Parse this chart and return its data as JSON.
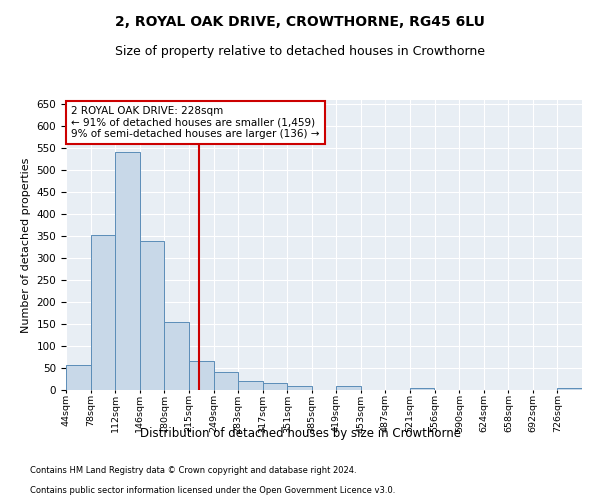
{
  "title": "2, ROYAL OAK DRIVE, CROWTHORNE, RG45 6LU",
  "subtitle": "Size of property relative to detached houses in Crowthorne",
  "xlabel": "Distribution of detached houses by size in Crowthorne",
  "ylabel": "Number of detached properties",
  "footer1": "Contains HM Land Registry data © Crown copyright and database right 2024.",
  "footer2": "Contains public sector information licensed under the Open Government Licence v3.0.",
  "annotation_line1": "2 ROYAL OAK DRIVE: 228sqm",
  "annotation_line2": "← 91% of detached houses are smaller (1,459)",
  "annotation_line3": "9% of semi-detached houses are larger (136) →",
  "bar_color": "#c8d8e8",
  "bar_edge_color": "#5b8db8",
  "ref_line_x": 228,
  "ref_line_color": "#cc0000",
  "categories": [
    "44sqm",
    "78sqm",
    "112sqm",
    "146sqm",
    "180sqm",
    "215sqm",
    "249sqm",
    "283sqm",
    "317sqm",
    "351sqm",
    "385sqm",
    "419sqm",
    "453sqm",
    "487sqm",
    "521sqm",
    "556sqm",
    "590sqm",
    "624sqm",
    "658sqm",
    "692sqm",
    "726sqm"
  ],
  "bin_edges": [
    44,
    78,
    112,
    146,
    180,
    215,
    249,
    283,
    317,
    351,
    385,
    419,
    453,
    487,
    521,
    556,
    590,
    624,
    658,
    692,
    726
  ],
  "bin_width": 34,
  "values": [
    57,
    353,
    541,
    338,
    155,
    65,
    40,
    20,
    15,
    8,
    0,
    8,
    0,
    0,
    4,
    0,
    0,
    0,
    0,
    0,
    4
  ],
  "ylim": [
    0,
    660
  ],
  "yticks": [
    0,
    50,
    100,
    150,
    200,
    250,
    300,
    350,
    400,
    450,
    500,
    550,
    600,
    650
  ],
  "background_color": "#e8eef4",
  "title_fontsize": 10,
  "subtitle_fontsize": 9
}
